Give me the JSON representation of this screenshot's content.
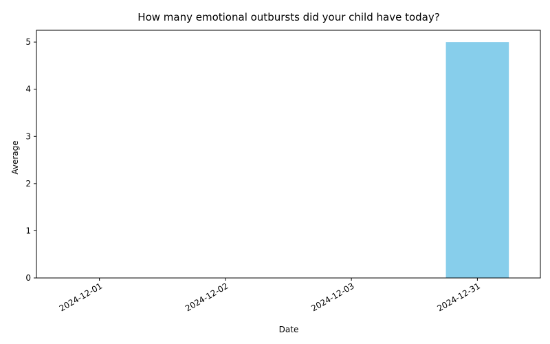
{
  "chart_data": {
    "type": "bar",
    "title": "How many emotional outbursts did your child have today?",
    "xlabel": "Date",
    "ylabel": "Average",
    "categories": [
      "2024-12-01",
      "2024-12-02",
      "2024-12-03",
      "2024-12-31"
    ],
    "values": [
      0,
      0,
      0,
      5
    ],
    "ylim": [
      0,
      5.25
    ],
    "yticks": [
      0,
      1,
      2,
      3,
      4,
      5
    ],
    "bar_color": "#87ceeb",
    "grid": false,
    "legend": "none"
  }
}
